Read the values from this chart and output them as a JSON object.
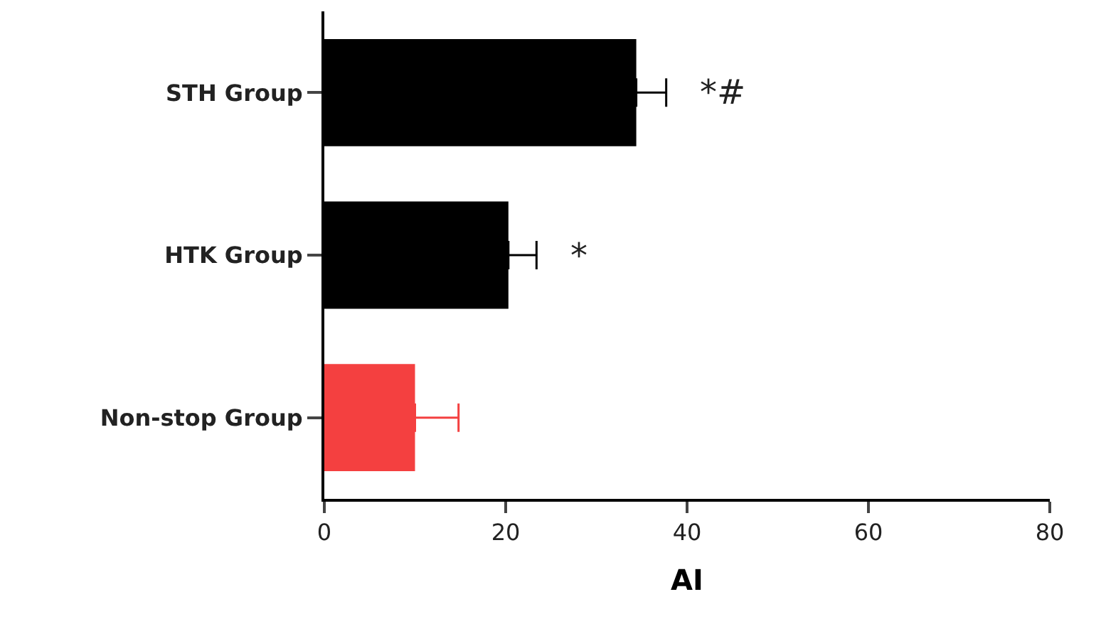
{
  "chart_data": {
    "type": "bar",
    "orientation": "horizontal",
    "xlabel": "AI",
    "categories": [
      "STH Group",
      "HTK Group",
      "Non-stop Group"
    ],
    "values": [
      34.4,
      20.3,
      10.0
    ],
    "errors": [
      [
        34.4,
        37.7
      ],
      [
        20.3,
        23.4
      ],
      [
        10.0,
        14.8
      ]
    ],
    "colors": [
      "#000000",
      "#000000",
      "#f44040"
    ],
    "xlim": [
      0,
      80
    ],
    "xticks": [
      0,
      20,
      40,
      60,
      80
    ],
    "annotations": [
      "*#",
      "*"
    ]
  }
}
